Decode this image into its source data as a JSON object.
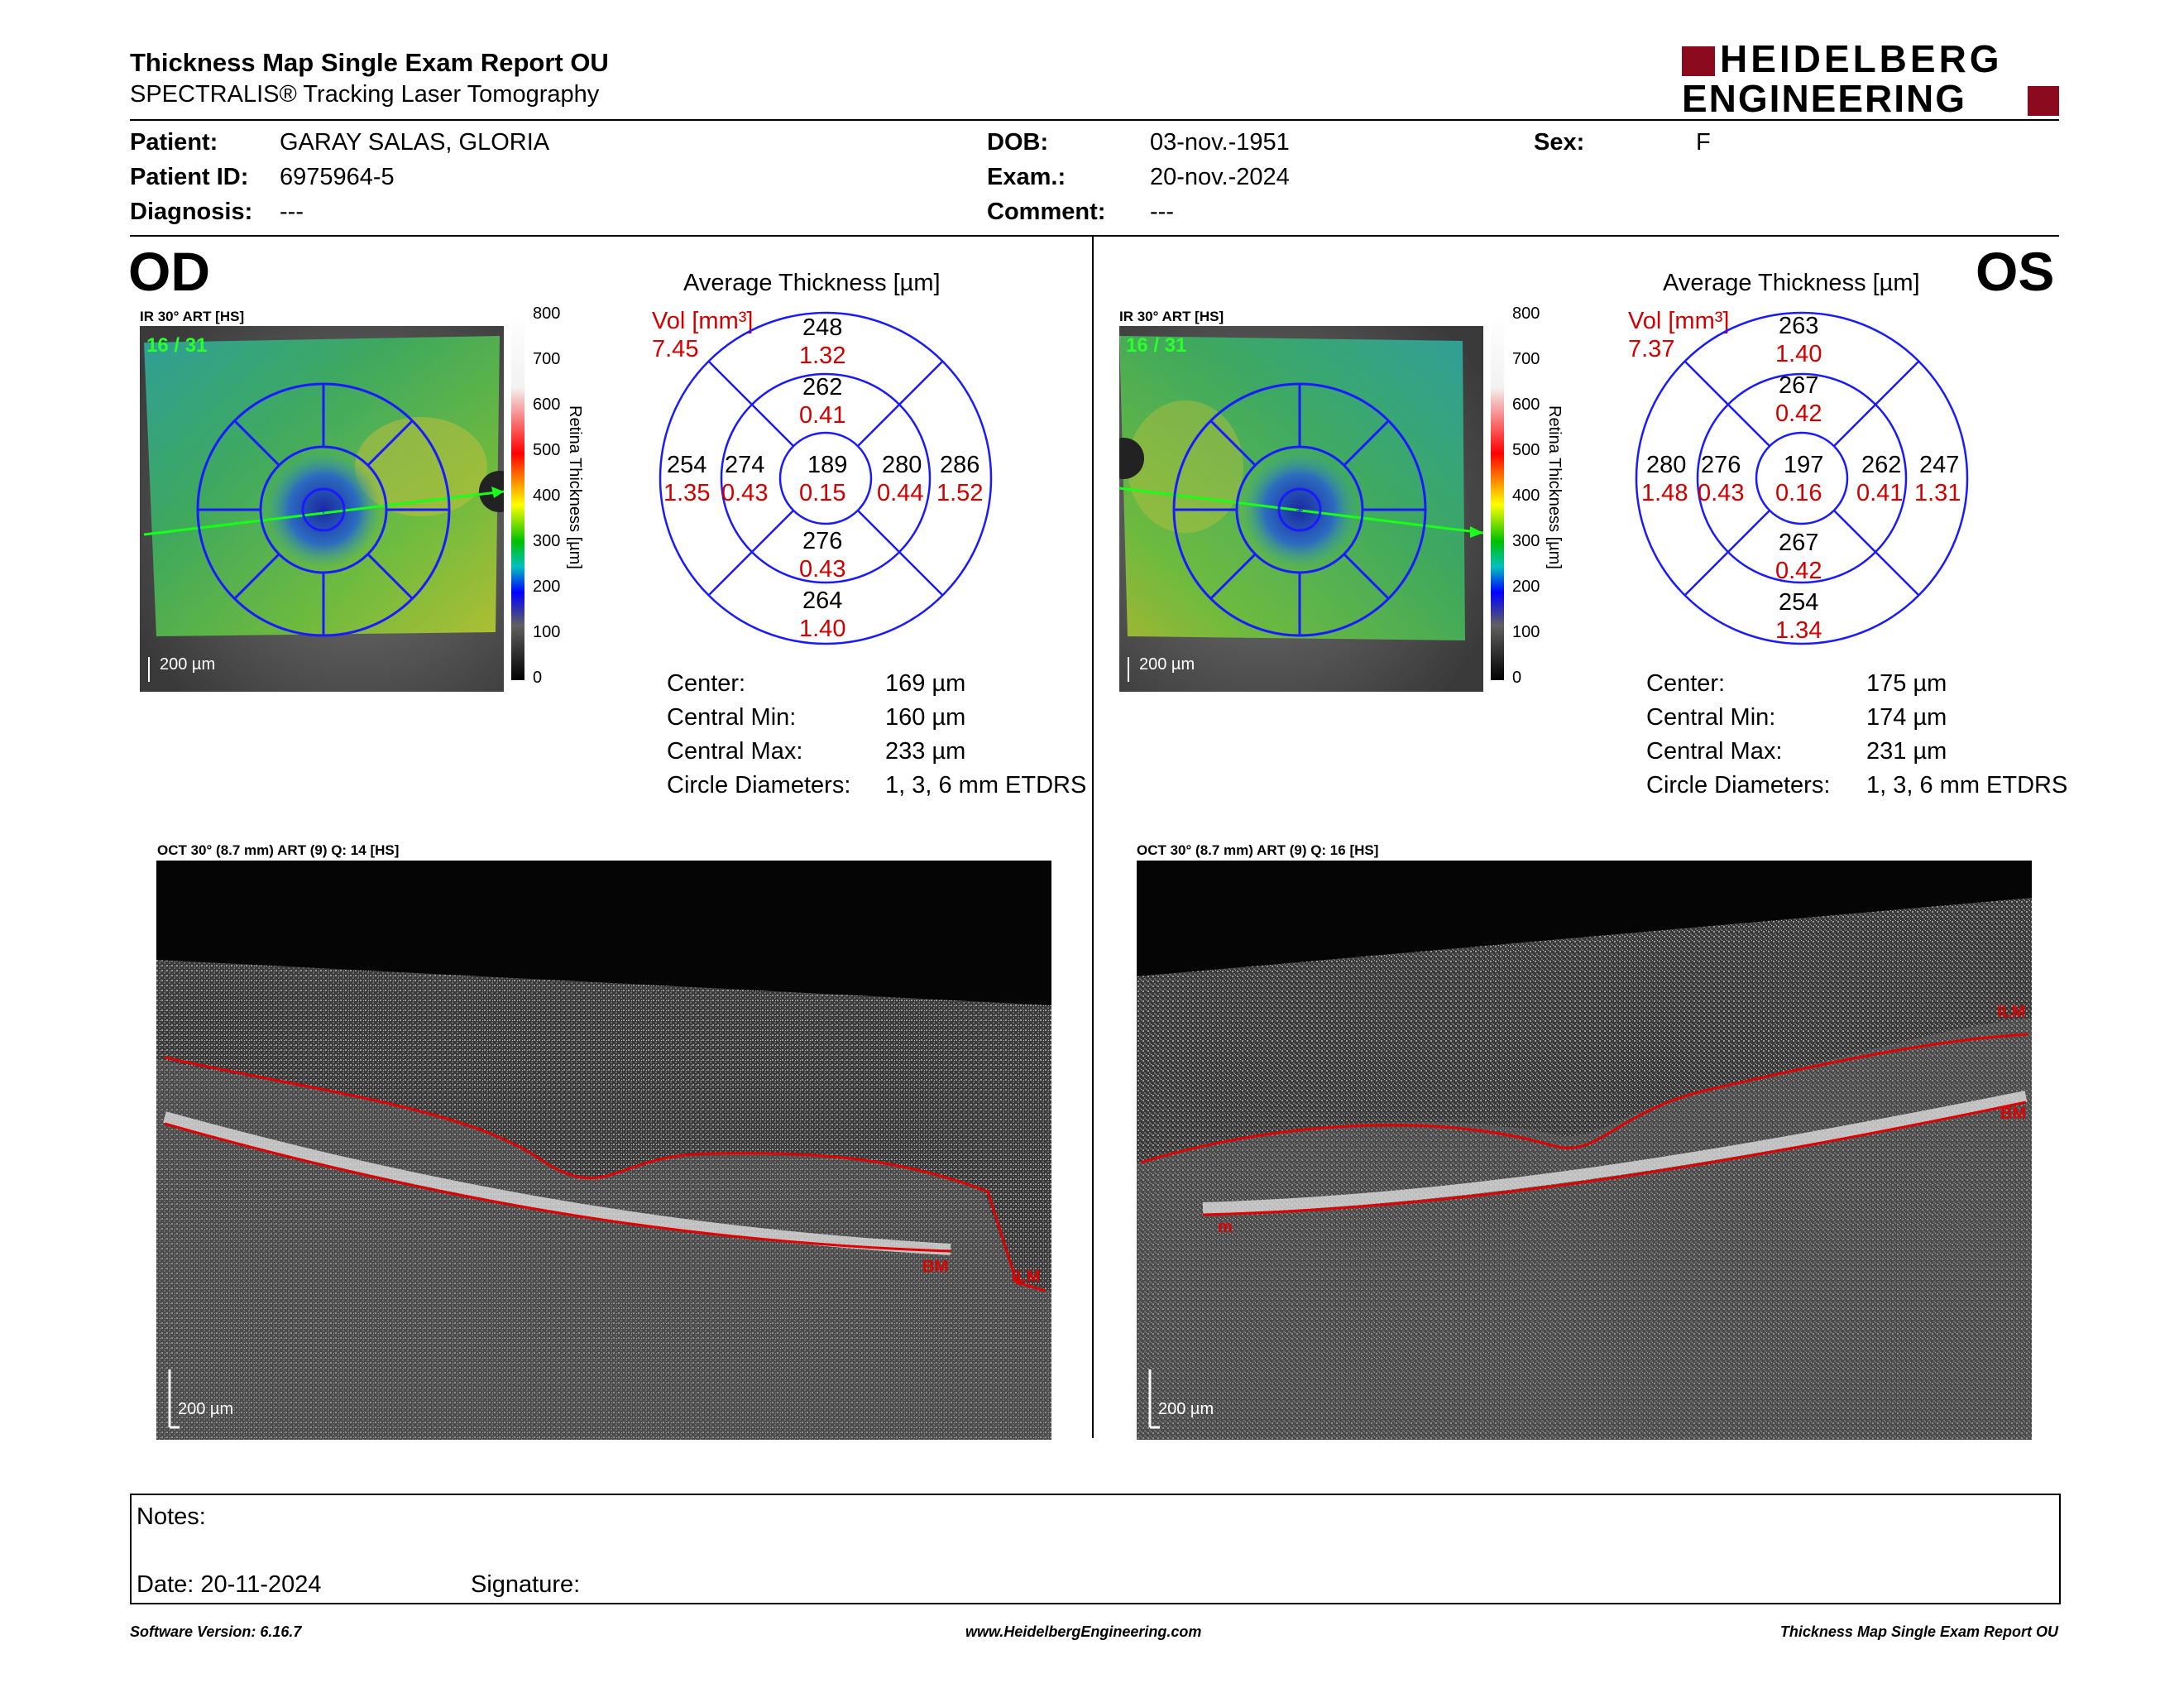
{
  "header": {
    "title": "Thickness Map Single Exam Report OU",
    "subtitle": "SPECTRALIS® Tracking Laser Tomography",
    "logo_line1": "HEIDELBERG",
    "logo_line2": "ENGINEERING"
  },
  "patient": {
    "patient_label": "Patient:",
    "patient_value": "GARAY SALAS, GLORIA",
    "id_label": "Patient ID:",
    "id_value": "6975964-5",
    "diag_label": "Diagnosis:",
    "diag_value": "---",
    "dob_label": "DOB:",
    "dob_value": "03-nov.-1951",
    "exam_label": "Exam.:",
    "exam_value": "20-nov.-2024",
    "comment_label": "Comment:",
    "comment_value": "---",
    "sex_label": "Sex:",
    "sex_value": "F"
  },
  "colorbar": {
    "ticks": [
      "800",
      "700",
      "600",
      "500",
      "400",
      "300",
      "200",
      "100",
      "0"
    ],
    "title": "Retina  Thickness [µm]"
  },
  "od": {
    "eye": "OD",
    "ir_label": "IR 30° ART [HS]",
    "frames": "16 / 31",
    "scale": "200 µm",
    "avg_title": "Average Thickness [µm]",
    "vol_label": "Vol [mm³]",
    "vol_value": "7.45",
    "grid": {
      "center": [
        "189",
        "0.15"
      ],
      "inner_top": [
        "262",
        "0.41"
      ],
      "outer_top": [
        "248",
        "1.32"
      ],
      "inner_bottom": [
        "276",
        "0.43"
      ],
      "outer_bottom": [
        "264",
        "1.40"
      ],
      "inner_left": [
        "274",
        "0.43"
      ],
      "outer_left": [
        "254",
        "1.35"
      ],
      "inner_right": [
        "280",
        "0.44"
      ],
      "outer_right": [
        "286",
        "1.52"
      ]
    },
    "stats": [
      {
        "label": "Center:",
        "value": "169 µm"
      },
      {
        "label": "Central Min:",
        "value": "160 µm"
      },
      {
        "label": "Central Max:",
        "value": "233 µm"
      },
      {
        "label": "Circle Diameters:",
        "value": "1, 3, 6 mm ETDRS"
      }
    ],
    "oct_label": "OCT 30° (8.7 mm) ART (9) Q: 14 [HS]",
    "oct_scale": "200 µm",
    "tag_bm": "BM",
    "tag_ilm": "ILM"
  },
  "os": {
    "eye": "OS",
    "ir_label": "IR 30° ART [HS]",
    "frames": "16 / 31",
    "scale": "200 µm",
    "avg_title": "Average Thickness [µm]",
    "vol_label": "Vol [mm³]",
    "vol_value": "7.37",
    "grid": {
      "center": [
        "197",
        "0.16"
      ],
      "inner_top": [
        "267",
        "0.42"
      ],
      "outer_top": [
        "263",
        "1.40"
      ],
      "inner_bottom": [
        "267",
        "0.42"
      ],
      "outer_bottom": [
        "254",
        "1.34"
      ],
      "inner_left": [
        "276",
        "0.43"
      ],
      "outer_left": [
        "280",
        "1.48"
      ],
      "inner_right": [
        "262",
        "0.41"
      ],
      "outer_right": [
        "247",
        "1.31"
      ]
    },
    "stats": [
      {
        "label": "Center:",
        "value": "175 µm"
      },
      {
        "label": "Central Min:",
        "value": "174 µm"
      },
      {
        "label": "Central Max:",
        "value": "231 µm"
      },
      {
        "label": "Circle Diameters:",
        "value": "1, 3, 6 mm ETDRS"
      }
    ],
    "oct_label": "OCT 30° (8.7 mm) ART (9) Q: 16 [HS]",
    "oct_scale": "200 µm",
    "tag_ilm": "ILM",
    "tag_bm": "BM",
    "tag_m": "m"
  },
  "notes": {
    "notes_label": "Notes:",
    "date_label": "Date: 20-11-2024",
    "signature_label": "Signature:"
  },
  "footer": {
    "software": "Software Version: 6.16.7",
    "url": "www.HeidelbergEngineering.com",
    "report": "Thickness Map Single Exam Report OU"
  },
  "colors": {
    "accent_red": "#c00000",
    "grid_blue": "#1a1aff",
    "logo_red": "#8b0a1e"
  }
}
